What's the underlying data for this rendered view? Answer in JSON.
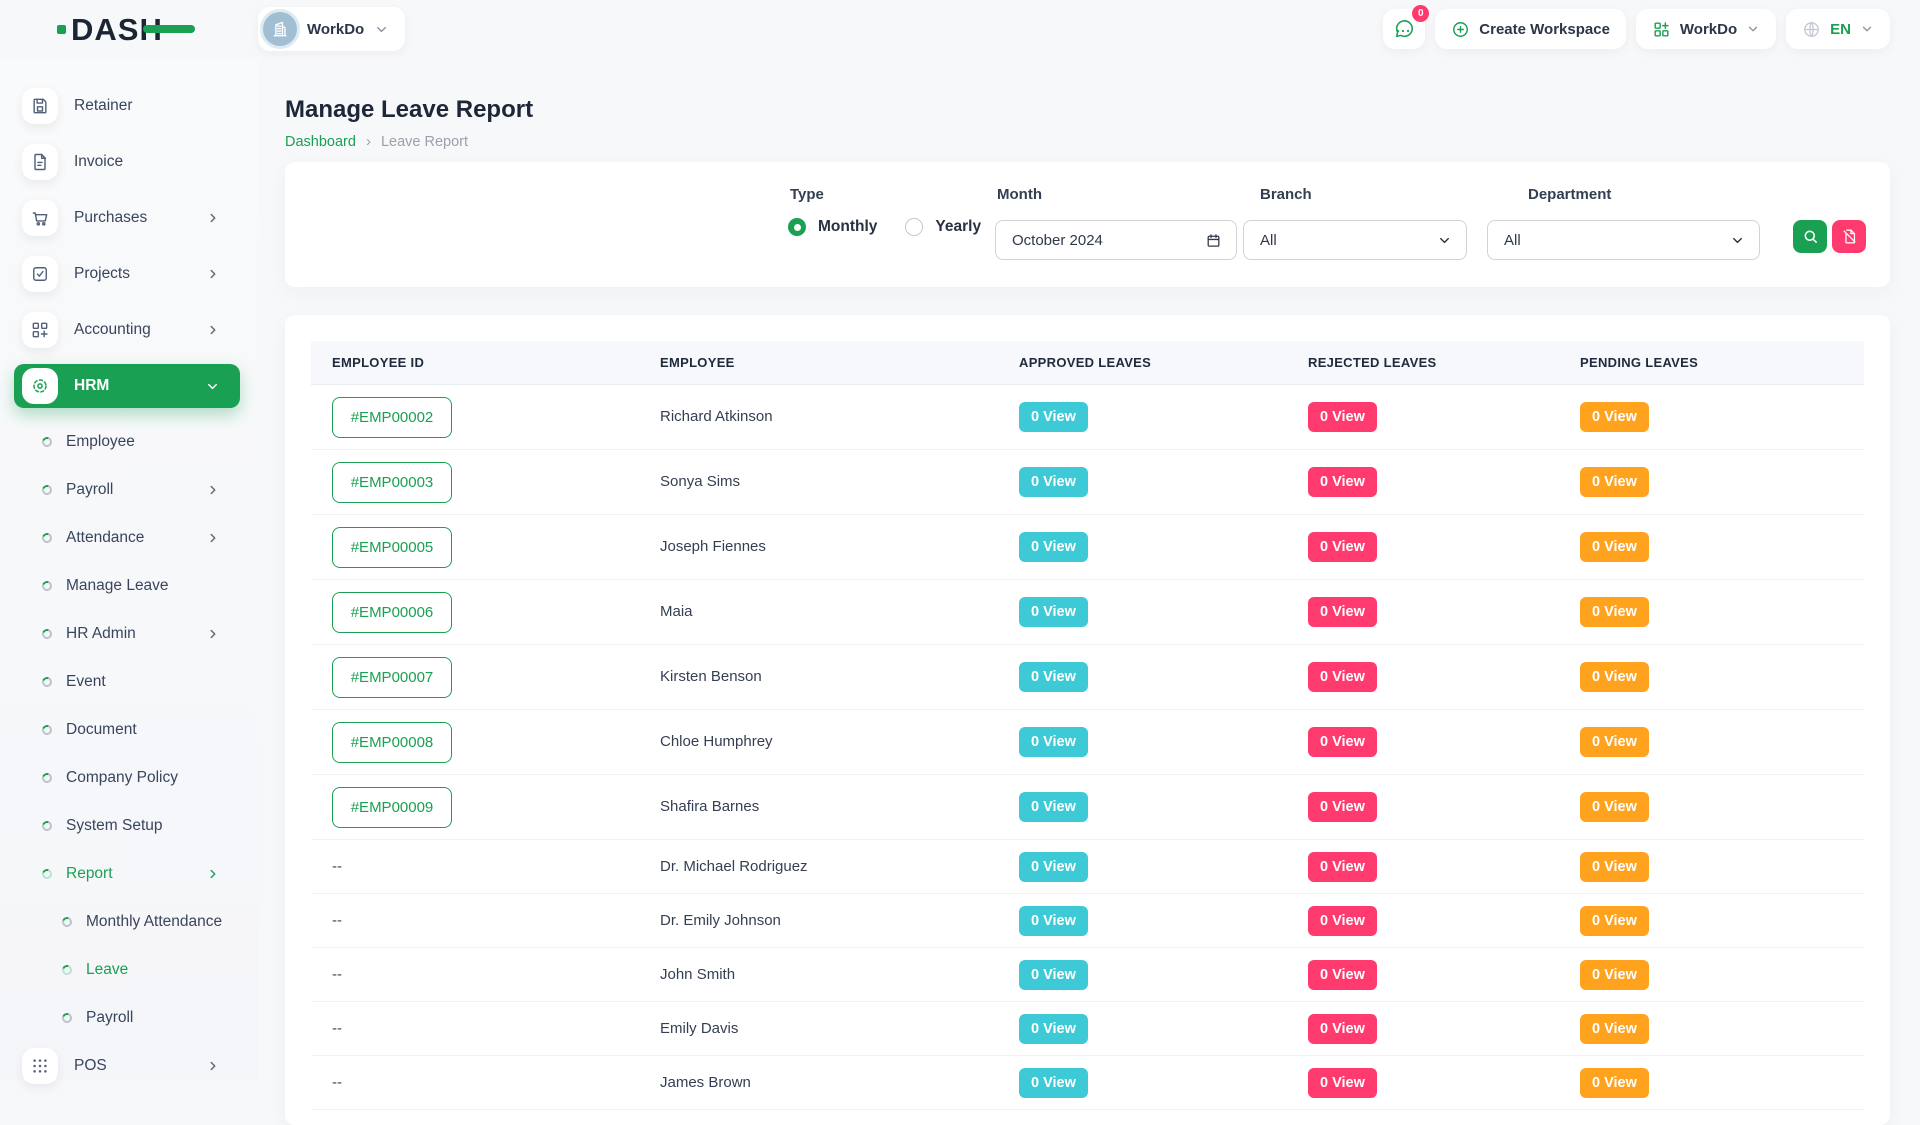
{
  "brand": {
    "name": "DASH"
  },
  "topbar": {
    "workspace_pill": {
      "label": "WorkDo"
    },
    "messages": {
      "badge": "0"
    },
    "create_workspace": {
      "label": "Create Workspace"
    },
    "app_switcher": {
      "label": "WorkDo"
    },
    "language": {
      "label": "EN"
    }
  },
  "sidebar": {
    "items": [
      {
        "label": "Retainer",
        "level": "top",
        "icon": "save-icon",
        "chevron": null,
        "active": false
      },
      {
        "label": "Invoice",
        "level": "top",
        "icon": "invoice-icon",
        "chevron": null,
        "active": false
      },
      {
        "label": "Purchases",
        "level": "top",
        "icon": "cart-icon",
        "chevron": "right",
        "active": false
      },
      {
        "label": "Projects",
        "level": "top",
        "icon": "tasks-icon",
        "chevron": "right",
        "active": false
      },
      {
        "label": "Accounting",
        "level": "top",
        "icon": "accounting-icon",
        "chevron": "right",
        "active": false
      },
      {
        "label": "HRM",
        "level": "top",
        "icon": "hrm-icon",
        "chevron": "down",
        "active": true
      },
      {
        "label": "Employee",
        "level": "sub",
        "icon": "bullet-icon",
        "chevron": null,
        "active": false
      },
      {
        "label": "Payroll",
        "level": "sub",
        "icon": "bullet-icon",
        "chevron": "right",
        "active": false
      },
      {
        "label": "Attendance",
        "level": "sub",
        "icon": "bullet-icon",
        "chevron": "right",
        "active": false
      },
      {
        "label": "Manage Leave",
        "level": "sub",
        "icon": "bullet-icon",
        "chevron": null,
        "active": false
      },
      {
        "label": "HR Admin",
        "level": "sub",
        "icon": "bullet-icon",
        "chevron": "right",
        "active": false
      },
      {
        "label": "Event",
        "level": "sub",
        "icon": "bullet-icon",
        "chevron": null,
        "active": false
      },
      {
        "label": "Document",
        "level": "sub",
        "icon": "bullet-icon",
        "chevron": null,
        "active": false
      },
      {
        "label": "Company Policy",
        "level": "sub",
        "icon": "bullet-icon",
        "chevron": null,
        "active": false
      },
      {
        "label": "System Setup",
        "level": "sub",
        "icon": "bullet-icon",
        "chevron": null,
        "active": false
      },
      {
        "label": "Report",
        "level": "sub",
        "icon": "bullet-icon",
        "chevron": "right",
        "active": true
      },
      {
        "label": "Monthly Attendance",
        "level": "subsub",
        "icon": "bullet-icon",
        "chevron": null,
        "active": false
      },
      {
        "label": "Leave",
        "level": "subsub",
        "icon": "bullet-icon",
        "chevron": null,
        "active": true
      },
      {
        "label": "Payroll",
        "level": "subsub",
        "icon": "bullet-icon",
        "chevron": null,
        "active": false
      },
      {
        "label": "POS",
        "level": "top",
        "icon": "pos-icon",
        "chevron": "right",
        "active": false
      }
    ]
  },
  "page": {
    "title": "Manage Leave Report",
    "breadcrumb": {
      "root": "Dashboard",
      "separator": "›",
      "current": "Leave Report"
    }
  },
  "filters": {
    "type": {
      "label": "Type",
      "options": [
        {
          "label": "Monthly",
          "selected": true
        },
        {
          "label": "Yearly",
          "selected": false
        }
      ]
    },
    "month": {
      "label": "Month",
      "value": "October 2024"
    },
    "branch": {
      "label": "Branch",
      "value": "All"
    },
    "department": {
      "label": "Department",
      "value": "All"
    }
  },
  "table": {
    "columns": [
      "EMPLOYEE ID",
      "EMPLOYEE",
      "APPROVED LEAVES",
      "REJECTED LEAVES",
      "PENDING LEAVES"
    ],
    "rows": [
      {
        "employee_id": "#EMP00002",
        "employee": "Richard Atkinson",
        "approved": "0 View",
        "rejected": "0 View",
        "pending": "0 View"
      },
      {
        "employee_id": "#EMP00003",
        "employee": "Sonya Sims",
        "approved": "0 View",
        "rejected": "0 View",
        "pending": "0 View"
      },
      {
        "employee_id": "#EMP00005",
        "employee": "Joseph Fiennes",
        "approved": "0 View",
        "rejected": "0 View",
        "pending": "0 View"
      },
      {
        "employee_id": "#EMP00006",
        "employee": "Maia",
        "approved": "0 View",
        "rejected": "0 View",
        "pending": "0 View"
      },
      {
        "employee_id": "#EMP00007",
        "employee": "Kirsten Benson",
        "approved": "0 View",
        "rejected": "0 View",
        "pending": "0 View"
      },
      {
        "employee_id": "#EMP00008",
        "employee": "Chloe Humphrey",
        "approved": "0 View",
        "rejected": "0 View",
        "pending": "0 View"
      },
      {
        "employee_id": "#EMP00009",
        "employee": "Shafira Barnes",
        "approved": "0 View",
        "rejected": "0 View",
        "pending": "0 View"
      },
      {
        "employee_id": "--",
        "employee": "Dr. Michael Rodriguez",
        "approved": "0 View",
        "rejected": "0 View",
        "pending": "0 View"
      },
      {
        "employee_id": "--",
        "employee": "Dr. Emily Johnson",
        "approved": "0 View",
        "rejected": "0 View",
        "pending": "0 View"
      },
      {
        "employee_id": "--",
        "employee": "John Smith",
        "approved": "0 View",
        "rejected": "0 View",
        "pending": "0 View"
      },
      {
        "employee_id": "--",
        "employee": "Emily Davis",
        "approved": "0 View",
        "rejected": "0 View",
        "pending": "0 View"
      },
      {
        "employee_id": "--",
        "employee": "James Brown",
        "approved": "0 View",
        "rejected": "0 View",
        "pending": "0 View"
      }
    ]
  },
  "colors": {
    "primary_green": "#1aa053",
    "approved_badge": "#3ec9d6",
    "rejected_badge": "#ff3a6e",
    "pending_badge": "#ffa21d"
  }
}
